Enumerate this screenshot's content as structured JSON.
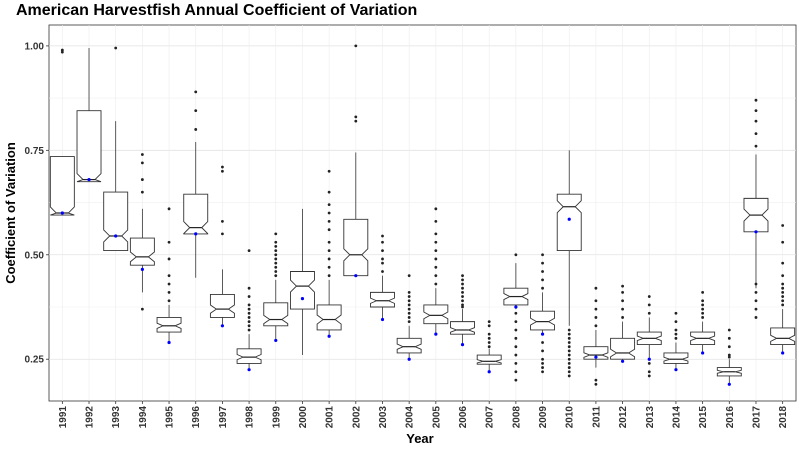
{
  "chart_data": {
    "type": "boxplot",
    "title": "American Harvestfish Annual Coefficient of Variation",
    "xlabel": "Year",
    "ylabel": "Coefficient of Variation",
    "ylim": [
      0.15,
      1.05
    ],
    "yticks": [
      0.25,
      0.5,
      0.75,
      1.0
    ],
    "ytick_labels": [
      "0.25",
      "0.50",
      "0.75",
      "1.00"
    ],
    "grid": true,
    "notched": true,
    "mean_marker_color": "#0000ff",
    "categories": [
      "1991",
      "1992",
      "1993",
      "1994",
      "1995",
      "1996",
      "1997",
      "1998",
      "1999",
      "2000",
      "2001",
      "2002",
      "2003",
      "2004",
      "2005",
      "2006",
      "2007",
      "2008",
      "2009",
      "2010",
      "2011",
      "2012",
      "2013",
      "2014",
      "2015",
      "2016",
      "2017",
      "2018"
    ],
    "boxes": [
      {
        "q1": 0.595,
        "median": 0.6,
        "q3": 0.735,
        "whislo": 0.595,
        "whishi": 0.735,
        "mean": 0.6,
        "outliers": [
          0.985,
          0.99
        ]
      },
      {
        "q1": 0.675,
        "median": 0.68,
        "q3": 0.845,
        "whislo": 0.675,
        "whishi": 0.995,
        "mean": 0.68,
        "outliers": []
      },
      {
        "q1": 0.51,
        "median": 0.545,
        "q3": 0.65,
        "whislo": 0.51,
        "whishi": 0.82,
        "mean": 0.545,
        "outliers": [
          0.995
        ]
      },
      {
        "q1": 0.475,
        "median": 0.495,
        "q3": 0.54,
        "whislo": 0.41,
        "whishi": 0.61,
        "mean": 0.465,
        "outliers": [
          0.37,
          0.65,
          0.68,
          0.72,
          0.74
        ]
      },
      {
        "q1": 0.315,
        "median": 0.33,
        "q3": 0.35,
        "whislo": 0.29,
        "whishi": 0.38,
        "mean": 0.29,
        "outliers": [
          0.39,
          0.41,
          0.43,
          0.45,
          0.49,
          0.53,
          0.61
        ]
      },
      {
        "q1": 0.55,
        "median": 0.565,
        "q3": 0.645,
        "whislo": 0.445,
        "whishi": 0.77,
        "mean": 0.55,
        "outliers": [
          0.8,
          0.845,
          0.89
        ]
      },
      {
        "q1": 0.35,
        "median": 0.37,
        "q3": 0.405,
        "whislo": 0.33,
        "whishi": 0.465,
        "mean": 0.33,
        "outliers": [
          0.55,
          0.58,
          0.7,
          0.71
        ]
      },
      {
        "q1": 0.24,
        "median": 0.255,
        "q3": 0.275,
        "whislo": 0.225,
        "whishi": 0.31,
        "mean": 0.225,
        "outliers": [
          0.32,
          0.33,
          0.34,
          0.35,
          0.36,
          0.37,
          0.38,
          0.4,
          0.42,
          0.51
        ]
      },
      {
        "q1": 0.33,
        "median": 0.345,
        "q3": 0.385,
        "whislo": 0.295,
        "whishi": 0.44,
        "mean": 0.295,
        "outliers": [
          0.45,
          0.46,
          0.47,
          0.48,
          0.49,
          0.5,
          0.51,
          0.52,
          0.53,
          0.55
        ]
      },
      {
        "q1": 0.37,
        "median": 0.425,
        "q3": 0.46,
        "whislo": 0.26,
        "whishi": 0.61,
        "mean": 0.395,
        "outliers": []
      },
      {
        "q1": 0.32,
        "median": 0.345,
        "q3": 0.38,
        "whislo": 0.305,
        "whishi": 0.44,
        "mean": 0.305,
        "outliers": [
          0.45,
          0.47,
          0.49,
          0.51,
          0.53,
          0.56,
          0.58,
          0.6,
          0.62,
          0.65,
          0.7
        ]
      },
      {
        "q1": 0.45,
        "median": 0.5,
        "q3": 0.585,
        "whislo": 0.45,
        "whishi": 0.745,
        "mean": 0.45,
        "outliers": [
          0.82,
          0.83,
          1.0
        ]
      },
      {
        "q1": 0.375,
        "median": 0.39,
        "q3": 0.41,
        "whislo": 0.345,
        "whishi": 0.45,
        "mean": 0.345,
        "outliers": [
          0.46,
          0.48,
          0.49,
          0.51,
          0.53,
          0.545
        ]
      },
      {
        "q1": 0.265,
        "median": 0.28,
        "q3": 0.3,
        "whislo": 0.25,
        "whishi": 0.33,
        "mean": 0.25,
        "outliers": [
          0.34,
          0.35,
          0.36,
          0.37,
          0.38,
          0.39,
          0.4,
          0.41,
          0.45
        ]
      },
      {
        "q1": 0.335,
        "median": 0.355,
        "q3": 0.38,
        "whislo": 0.31,
        "whishi": 0.42,
        "mean": 0.31,
        "outliers": [
          0.43,
          0.45,
          0.47,
          0.49,
          0.51,
          0.53,
          0.55,
          0.58,
          0.61
        ]
      },
      {
        "q1": 0.31,
        "median": 0.32,
        "q3": 0.34,
        "whislo": 0.285,
        "whishi": 0.37,
        "mean": 0.285,
        "outliers": [
          0.375,
          0.38,
          0.39,
          0.4,
          0.41,
          0.42,
          0.43,
          0.44,
          0.45
        ]
      },
      {
        "q1": 0.238,
        "median": 0.245,
        "q3": 0.26,
        "whislo": 0.22,
        "whishi": 0.275,
        "mean": 0.22,
        "outliers": [
          0.28,
          0.29,
          0.3,
          0.31,
          0.33,
          0.34
        ]
      },
      {
        "q1": 0.38,
        "median": 0.4,
        "q3": 0.42,
        "whislo": 0.37,
        "whishi": 0.48,
        "mean": 0.375,
        "outliers": [
          0.2,
          0.22,
          0.24,
          0.26,
          0.28,
          0.3,
          0.32,
          0.34,
          0.36,
          0.5
        ]
      },
      {
        "q1": 0.32,
        "median": 0.34,
        "q3": 0.365,
        "whislo": 0.31,
        "whishi": 0.41,
        "mean": 0.31,
        "outliers": [
          0.22,
          0.23,
          0.24,
          0.25,
          0.27,
          0.29,
          0.42,
          0.44,
          0.46,
          0.48,
          0.5
        ]
      },
      {
        "q1": 0.51,
        "median": 0.615,
        "q3": 0.645,
        "whislo": 0.33,
        "whishi": 0.75,
        "mean": 0.585,
        "outliers": [
          0.21,
          0.22,
          0.23,
          0.24,
          0.25,
          0.26,
          0.27,
          0.28,
          0.29,
          0.3,
          0.31,
          0.32
        ]
      },
      {
        "q1": 0.25,
        "median": 0.26,
        "q3": 0.28,
        "whislo": 0.23,
        "whishi": 0.32,
        "mean": 0.255,
        "outliers": [
          0.19,
          0.2,
          0.33,
          0.35,
          0.37,
          0.39,
          0.42
        ]
      },
      {
        "q1": 0.25,
        "median": 0.265,
        "q3": 0.3,
        "whislo": 0.245,
        "whishi": 0.34,
        "mean": 0.245,
        "outliers": [
          0.35,
          0.37,
          0.39,
          0.41,
          0.425
        ]
      },
      {
        "q1": 0.285,
        "median": 0.3,
        "q3": 0.315,
        "whislo": 0.25,
        "whishi": 0.35,
        "mean": 0.25,
        "outliers": [
          0.21,
          0.22,
          0.24,
          0.36,
          0.38,
          0.4
        ]
      },
      {
        "q1": 0.24,
        "median": 0.25,
        "q3": 0.265,
        "whislo": 0.225,
        "whishi": 0.29,
        "mean": 0.225,
        "outliers": [
          0.3,
          0.31,
          0.32,
          0.34,
          0.36
        ]
      },
      {
        "q1": 0.285,
        "median": 0.3,
        "q3": 0.315,
        "whislo": 0.265,
        "whishi": 0.34,
        "mean": 0.265,
        "outliers": [
          0.35,
          0.36,
          0.37,
          0.38,
          0.39,
          0.41
        ]
      },
      {
        "q1": 0.21,
        "median": 0.22,
        "q3": 0.23,
        "whislo": 0.19,
        "whishi": 0.25,
        "mean": 0.19,
        "outliers": [
          0.255,
          0.26,
          0.28,
          0.3,
          0.32
        ]
      },
      {
        "q1": 0.555,
        "median": 0.595,
        "q3": 0.635,
        "whislo": 0.42,
        "whishi": 0.74,
        "mean": 0.555,
        "outliers": [
          0.35,
          0.37,
          0.39,
          0.41,
          0.43,
          0.76,
          0.79,
          0.82,
          0.845,
          0.87
        ]
      },
      {
        "q1": 0.285,
        "median": 0.3,
        "q3": 0.325,
        "whislo": 0.265,
        "whishi": 0.37,
        "mean": 0.265,
        "outliers": [
          0.38,
          0.39,
          0.4,
          0.41,
          0.42,
          0.43,
          0.45,
          0.48,
          0.53,
          0.57
        ]
      }
    ]
  }
}
